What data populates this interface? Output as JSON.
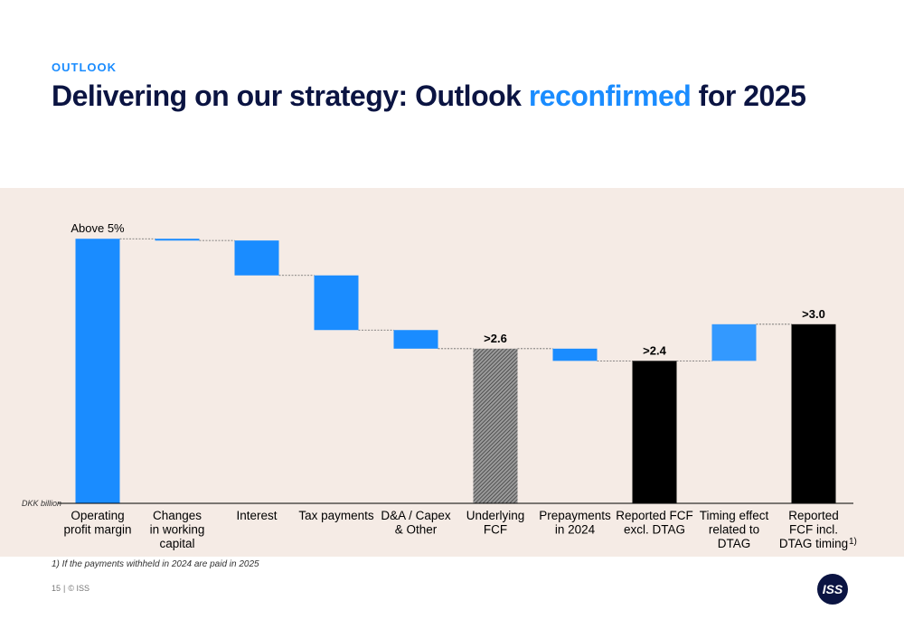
{
  "header": {
    "section": "OUTLOOK",
    "title_part1": "Delivering on our strategy: Outlook ",
    "title_accent": "reconfirmed",
    "title_part2": " for 2025"
  },
  "chart_data": {
    "type": "waterfall",
    "unit_label": "DKK billion",
    "categories": [
      "Operating profit margin",
      "Changes in working capital",
      "Interest",
      "Tax payments",
      "D&A / Capex & Other",
      "Underlying FCF",
      "Prepayments in 2024",
      "Reported FCF excl. DTAG",
      "Timing effect related to DTAG",
      "Reported FCF incl. DTAG timing"
    ],
    "category_lines": [
      [
        "Operating",
        "profit margin"
      ],
      [
        "Changes",
        "in working",
        "capital"
      ],
      [
        "Interest"
      ],
      [
        "Tax payments"
      ],
      [
        "D&A / Capex",
        "& Other"
      ],
      [
        "Underlying",
        "FCF"
      ],
      [
        "Prepayments",
        "in 2024"
      ],
      [
        "Reported FCF",
        "excl. DTAG"
      ],
      [
        "Timing effect",
        "related to",
        "DTAG"
      ],
      [
        "Reported",
        "FCF incl.",
        "DTAG timing"
      ]
    ],
    "bars": [
      {
        "start": 0,
        "end": 4.55,
        "kind": "increase",
        "label": "Above 5%"
      },
      {
        "start": 4.55,
        "end": 4.52,
        "kind": "change",
        "label": ""
      },
      {
        "start": 4.52,
        "end": 3.92,
        "kind": "change",
        "label": ""
      },
      {
        "start": 3.92,
        "end": 2.98,
        "kind": "change",
        "label": ""
      },
      {
        "start": 2.98,
        "end": 2.66,
        "kind": "change",
        "label": ""
      },
      {
        "start": 0,
        "end": 2.66,
        "kind": "subtotal-hatched",
        "label": ">2.6"
      },
      {
        "start": 2.66,
        "end": 2.45,
        "kind": "change",
        "label": ""
      },
      {
        "start": 0,
        "end": 2.45,
        "kind": "total",
        "label": ">2.4"
      },
      {
        "start": 2.45,
        "end": 3.08,
        "kind": "change-light",
        "label": ""
      },
      {
        "start": 0,
        "end": 3.08,
        "kind": "total",
        "label": ">3.0"
      }
    ],
    "footnote_marker_category": 9,
    "footnote_marker": "1)",
    "ylim": [
      0,
      4.6
    ],
    "colors": {
      "increase": "#1a8cff",
      "change": "#1a8cff",
      "change-light": "#3399ff",
      "total": "#000000",
      "subtotal-hatched": "#777777"
    }
  },
  "footnote": "1) If the payments withheld in 2024 are paid in 2025",
  "footer": {
    "page": "15",
    "separator": "|",
    "copyright": "© ISS"
  },
  "logo": {
    "text": "ISS",
    "color": "#0b1442"
  }
}
